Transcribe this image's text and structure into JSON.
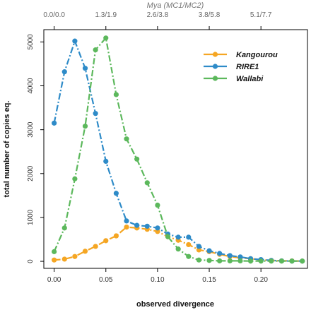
{
  "chart_data": {
    "type": "line",
    "title": "",
    "xlabel": "observed divergence",
    "ylabel": "total number of copies eq.",
    "xlim": [
      -0.01,
      0.245
    ],
    "ylim": [
      -160,
      5280
    ],
    "x_ticks": [
      0.0,
      0.05,
      0.1,
      0.15,
      0.2
    ],
    "x_tick_labels": [
      "0.00",
      "0.05",
      "0.10",
      "0.15",
      "0.20"
    ],
    "y_ticks": [
      0,
      1000,
      2000,
      3000,
      4000,
      5000
    ],
    "y_tick_labels": [
      "0",
      "1000",
      "2000",
      "3000",
      "4000",
      "5000"
    ],
    "top_axis": {
      "label": "Mya (MC1/MC2)",
      "ticks": [
        0.0,
        0.05,
        0.1,
        0.15,
        0.2
      ],
      "tick_labels": [
        "0.0/0.0",
        "1.3/1.9",
        "2.6/3.8",
        "3.8/5.8",
        "5.1/7.7"
      ]
    },
    "grid": false,
    "legend_position": "top-right",
    "series": [
      {
        "name": "Kangourou",
        "color": "#f5a623",
        "x": [
          0.0,
          0.01,
          0.02,
          0.03,
          0.04,
          0.05,
          0.06,
          0.07,
          0.08,
          0.09,
          0.1,
          0.11,
          0.12,
          0.13,
          0.14,
          0.15,
          0.16,
          0.17,
          0.18,
          0.19,
          0.2,
          0.21,
          0.22,
          0.23,
          0.24
        ],
        "values": [
          30,
          50,
          110,
          230,
          340,
          470,
          580,
          780,
          760,
          730,
          680,
          560,
          480,
          380,
          260,
          220,
          160,
          110,
          80,
          60,
          30,
          20,
          10,
          10,
          5
        ]
      },
      {
        "name": "RIRE1",
        "color": "#2e8bc8",
        "x": [
          0.0,
          0.01,
          0.02,
          0.03,
          0.04,
          0.05,
          0.06,
          0.07,
          0.08,
          0.09,
          0.1,
          0.11,
          0.12,
          0.13,
          0.14,
          0.15,
          0.16,
          0.17,
          0.18,
          0.19,
          0.2,
          0.21,
          0.22,
          0.23,
          0.24
        ],
        "values": [
          3150,
          4320,
          5020,
          4400,
          3370,
          2280,
          1550,
          920,
          820,
          800,
          760,
          620,
          550,
          550,
          340,
          240,
          180,
          130,
          100,
          60,
          40,
          20,
          10,
          5,
          5
        ]
      },
      {
        "name": "Wallabi",
        "color": "#5cb85c",
        "x": [
          0.0,
          0.01,
          0.02,
          0.03,
          0.04,
          0.05,
          0.06,
          0.07,
          0.08,
          0.09,
          0.1,
          0.11,
          0.12,
          0.13,
          0.14,
          0.15,
          0.16,
          0.17,
          0.18,
          0.19,
          0.2,
          0.21,
          0.22,
          0.23,
          0.24
        ],
        "values": [
          220,
          760,
          1880,
          3080,
          4820,
          5090,
          3800,
          2790,
          2330,
          1790,
          1280,
          560,
          280,
          110,
          30,
          20,
          10,
          10,
          10,
          5,
          5,
          5,
          5,
          5,
          5
        ]
      }
    ]
  }
}
